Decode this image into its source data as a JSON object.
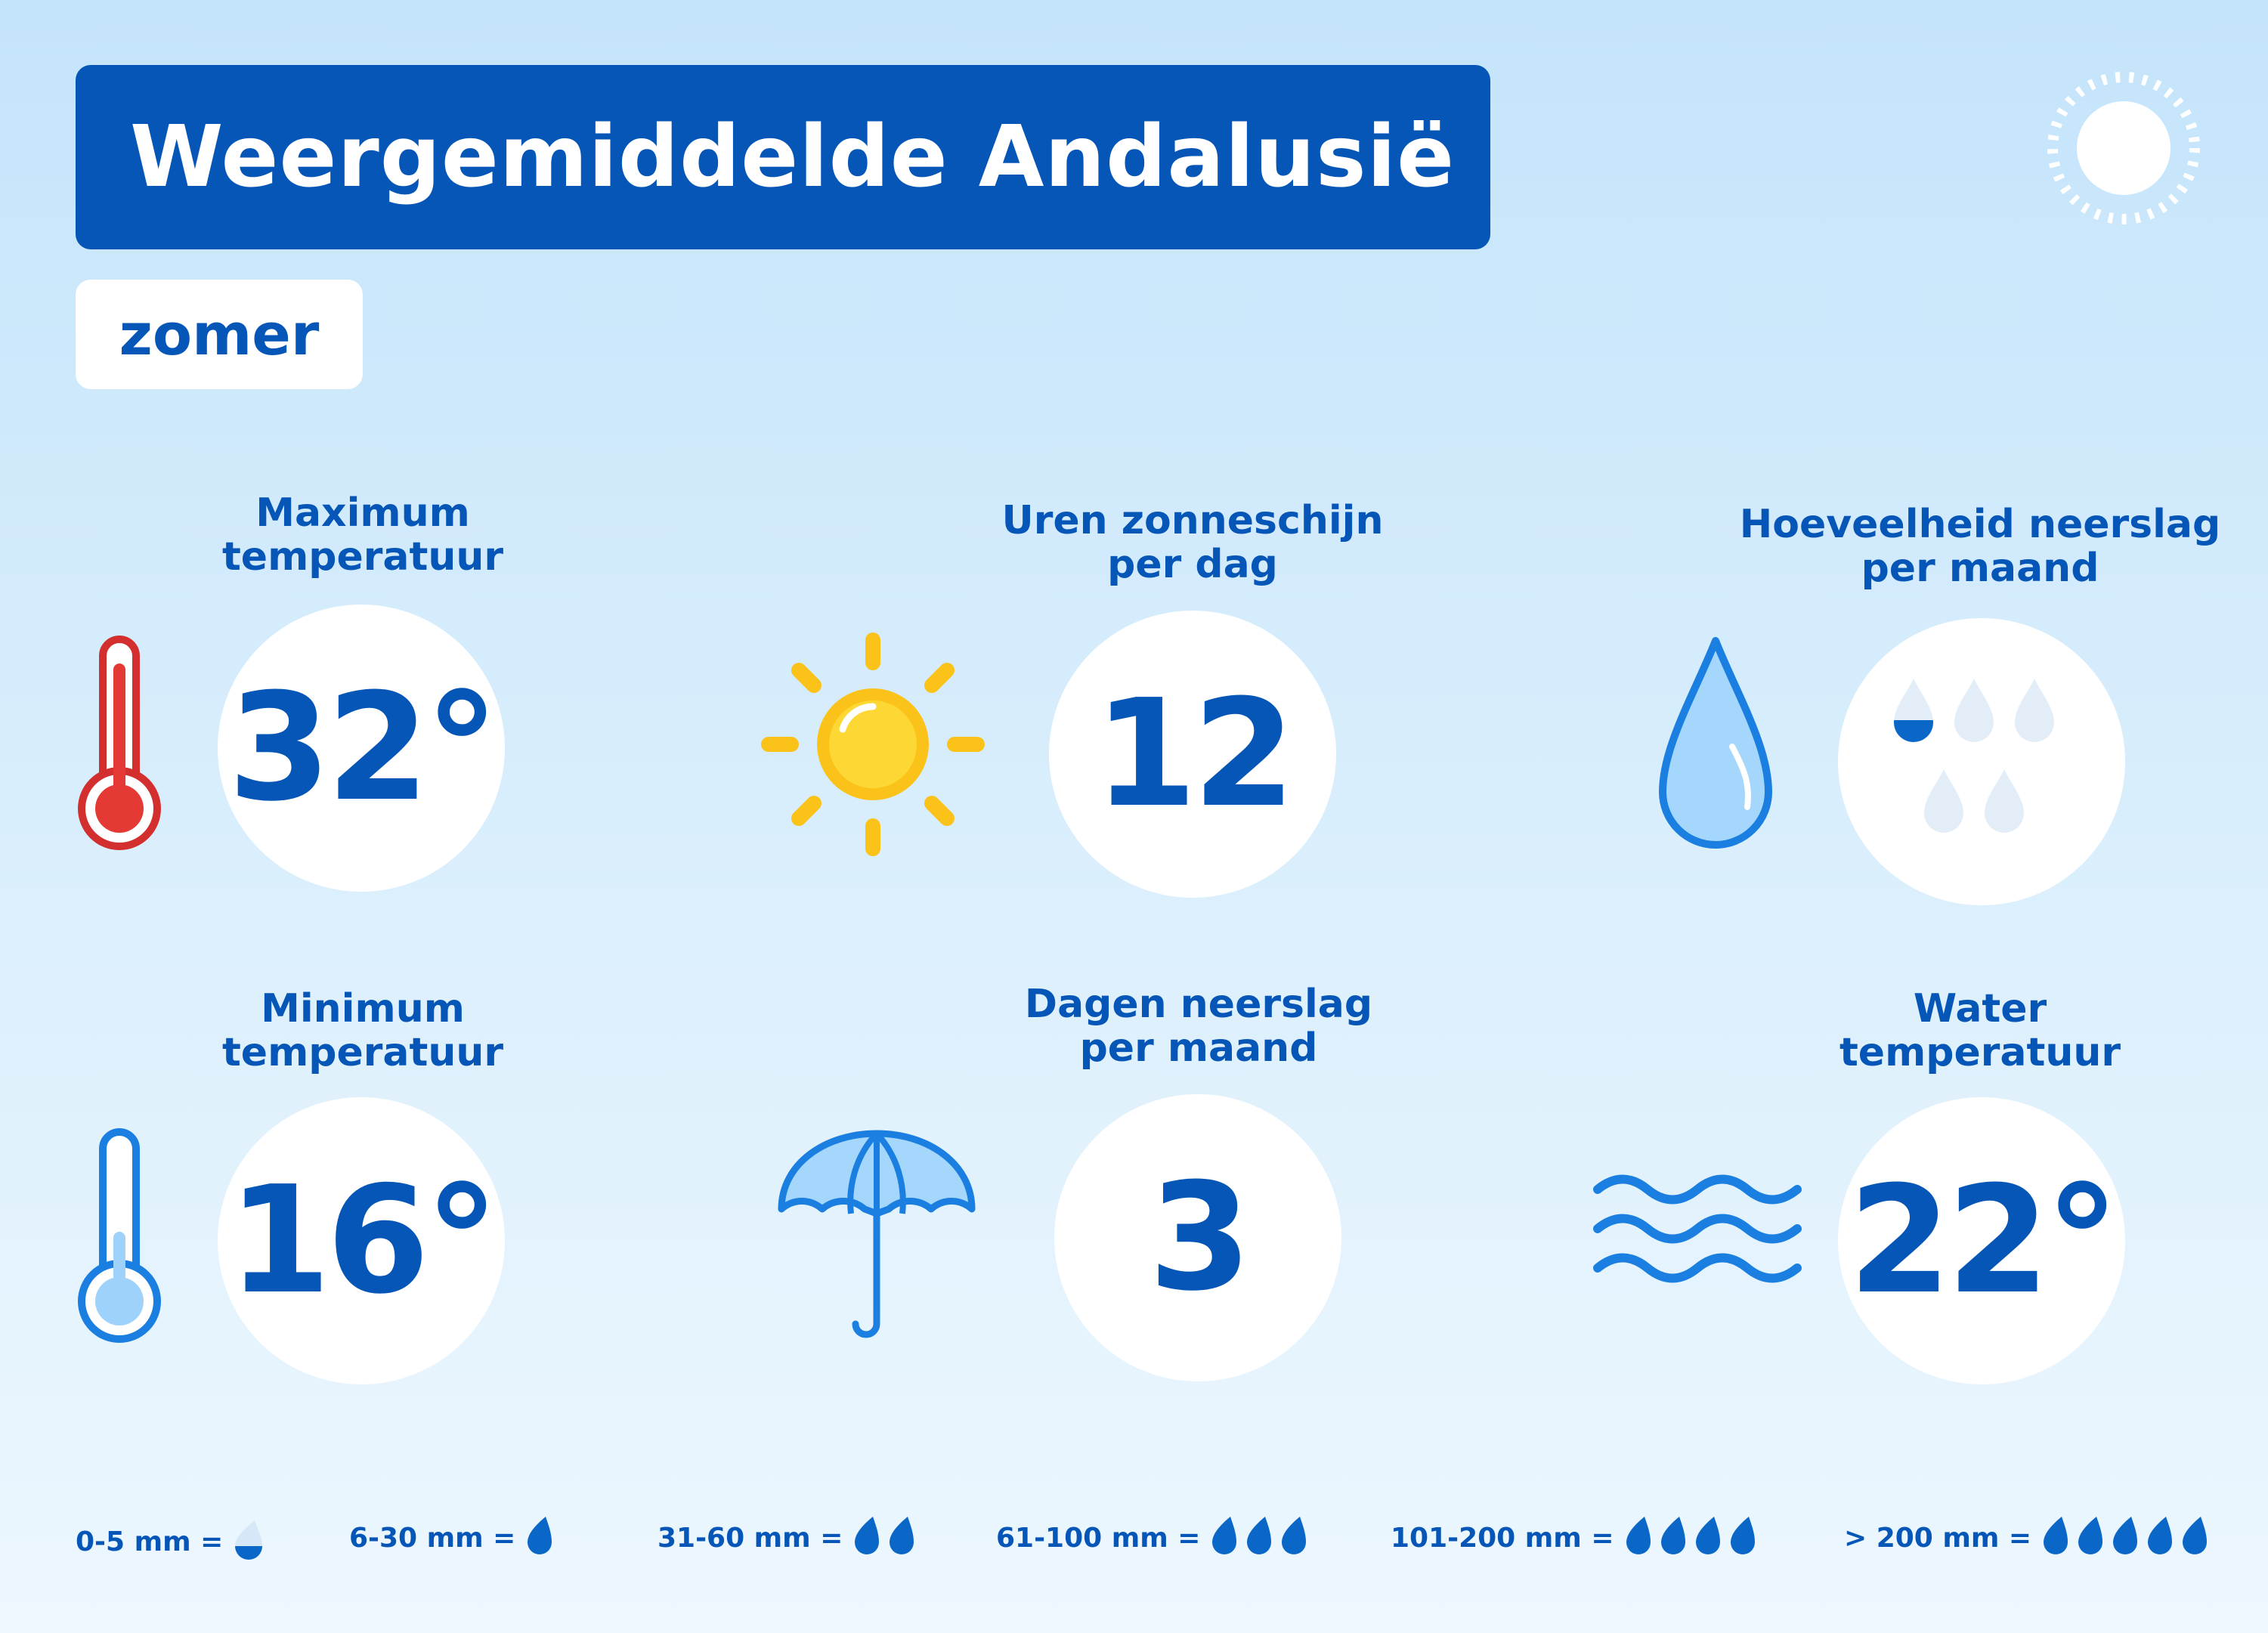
{
  "title": "Weergemiddelde Andalusië",
  "season": "zomer",
  "stats": {
    "max_temp": {
      "label_line1": "Maximum",
      "label_line2": "temperatuur",
      "value": "32°",
      "icon": "thermometer-hot-icon"
    },
    "sun_hours": {
      "label_line1": "Uren zonneschijn",
      "label_line2": "per dag",
      "value": "12",
      "icon": "sun-icon"
    },
    "precip_amount": {
      "label_line1": "Hoeveelheid neerslag",
      "label_line2": "per maand",
      "icon": "raindrop-icon",
      "drops_level": "0-5 mm"
    },
    "min_temp": {
      "label_line1": "Minimum",
      "label_line2": "temperatuur",
      "value": "16°",
      "icon": "thermometer-cold-icon"
    },
    "precip_days": {
      "label_line1": "Dagen neerslag",
      "label_line2": "per maand",
      "value": "3",
      "icon": "umbrella-icon"
    },
    "water_temp": {
      "label_line1": "Water",
      "label_line2": "temperatuur",
      "value": "22°",
      "icon": "waves-icon"
    }
  },
  "legend": [
    {
      "label": "0-5 mm =",
      "drops": 1,
      "partial": true
    },
    {
      "label": "6-30 mm =",
      "drops": 1,
      "partial": false
    },
    {
      "label": "31-60 mm =",
      "drops": 2,
      "partial": false
    },
    {
      "label": "61-100 mm =",
      "drops": 3,
      "partial": false
    },
    {
      "label": "101-200 mm =",
      "drops": 4,
      "partial": false
    },
    {
      "label": "> 200 mm =",
      "drops": 5,
      "partial": false
    }
  ],
  "colors": {
    "brand_blue": "#0656b8",
    "accent_blue": "#1a7fe0",
    "light_blue": "#9fd2fb",
    "sun_yellow": "#fbc21a",
    "thermo_red": "#d32f2f",
    "background": "#c4e4fb"
  }
}
